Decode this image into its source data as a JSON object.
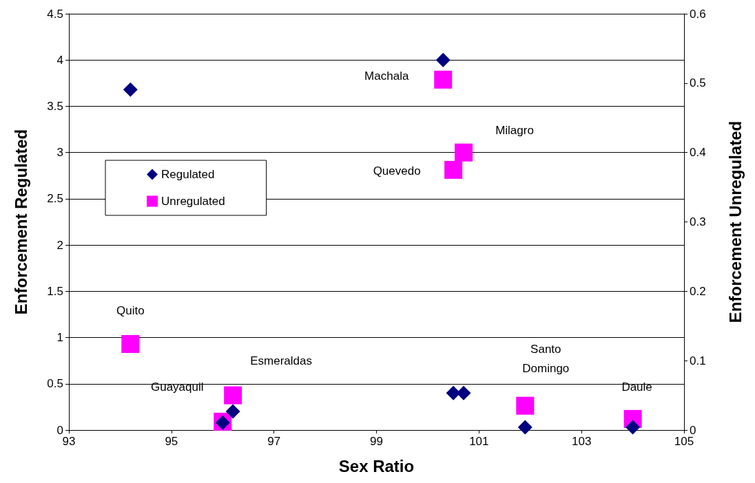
{
  "chart_data": {
    "type": "scatter",
    "xlabel": "Sex Ratio",
    "ylabel": "Enforcement Regulated",
    "y2label": "Enforcement Unregulated",
    "xlim": [
      93,
      105
    ],
    "xticks": [
      93,
      95,
      97,
      99,
      101,
      103,
      105
    ],
    "ylim": [
      0,
      4.5
    ],
    "yticks": [
      0,
      0.5,
      1,
      1.5,
      2,
      2.5,
      3,
      3.5,
      4,
      4.5
    ],
    "y2lim": [
      0,
      0.6
    ],
    "y2ticks": [
      0,
      0.1,
      0.2,
      0.3,
      0.4,
      0.5,
      0.6
    ],
    "grid": "y",
    "legend": "left",
    "series": [
      {
        "name": "Regulated",
        "color": "#000080",
        "marker": "diamond",
        "x": [
          94.2,
          100.3,
          100.5,
          100.7,
          96.2,
          96.0,
          101.9,
          104.0
        ],
        "values": [
          3.68,
          4.0,
          0.4,
          0.4,
          0.2,
          0.08,
          0.03,
          0.03
        ]
      },
      {
        "name": "Unregulated",
        "color": "#ff00ff",
        "marker": "square",
        "axis": "y2",
        "x": [
          94.2,
          100.3,
          100.7,
          100.5,
          96.2,
          96.0,
          101.9,
          104.0
        ],
        "values": [
          0.124,
          0.505,
          0.4,
          0.375,
          0.05,
          0.012,
          0.035,
          0.016
        ]
      }
    ],
    "annotations": [
      "Quito",
      "Machala",
      "Milagro",
      "Quevedo",
      "Esmeraldas",
      "Guayaquil",
      "Santo\nDomingo",
      "Daule"
    ]
  }
}
